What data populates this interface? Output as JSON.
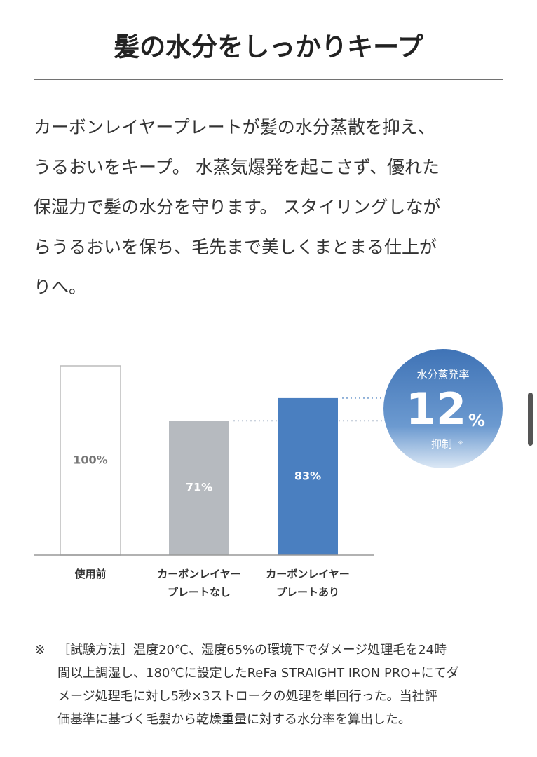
{
  "header": {
    "title": "髪の水分をしっかりキープ"
  },
  "paragraph": {
    "lines": [
      "カーボンレイヤープレートが髪の水分蒸散を抑え、",
      "うるおいをキープ。 水蒸気爆発を起こさず、優れた",
      "保湿力で髪の水分を守ります。 スタイリングしなが",
      "らうるおいを保ち、毛先まで美しくまとまる仕上が",
      "りへ。"
    ]
  },
  "chart_data": {
    "type": "bar",
    "categories": [
      "使用前",
      "カーボンレイヤープレートなし",
      "カーボンレイヤープレートあり"
    ],
    "values": [
      100,
      71,
      83
    ],
    "value_labels": [
      "100%",
      "71%",
      "83%"
    ],
    "colors": [
      "#ffffff",
      "#b6babf",
      "#4a7fc0"
    ],
    "ylim": [
      0,
      100
    ]
  },
  "badge": {
    "title": "水分蒸発率",
    "value": "12",
    "unit": "%",
    "note": "抑制",
    "mark": "※"
  },
  "footnote": {
    "mark": "※",
    "lines": [
      "［試験方法］温度20℃、湿度65%の環境下でダメージ処理毛を24時",
      "間以上調湿し、180℃に設定したReFa STRAIGHT IRON PRO+にてダ",
      "メージ処理毛に対し5秒×3ストロークの処理を単回行った。当社評",
      "価基準に基づく毛髪から乾燥重量に対する水分率を算出した。"
    ]
  }
}
